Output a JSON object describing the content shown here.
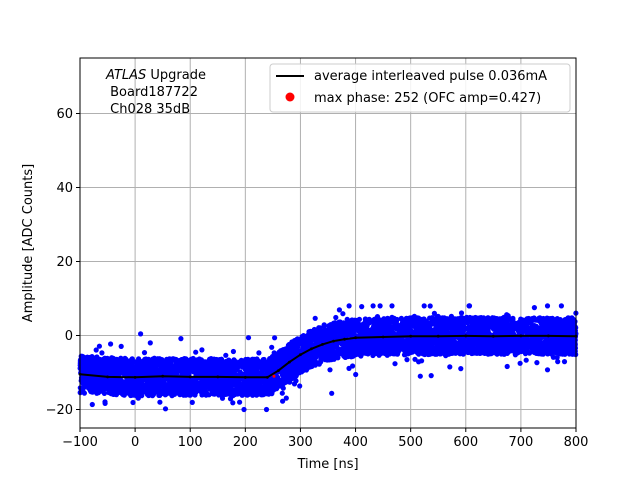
{
  "chart_data": {
    "type": "scatter",
    "title": "",
    "xlabel": "Time [ns]",
    "ylabel": "Amplitude [ADC Counts]",
    "xlim": [
      -100,
      800
    ],
    "ylim": [
      -25,
      75
    ],
    "xticks": [
      -100,
      0,
      100,
      200,
      300,
      400,
      500,
      600,
      700,
      800
    ],
    "yticks": [
      -20,
      0,
      20,
      40,
      60
    ],
    "xtick_labels": [
      "−100",
      "0",
      "100",
      "200",
      "300",
      "400",
      "500",
      "600",
      "700",
      "800"
    ],
    "ytick_labels": [
      "−20",
      "0",
      "20",
      "40",
      "60"
    ],
    "grid": true,
    "legend_position": "top-right",
    "annotation": {
      "line1_italic": "ATLAS",
      "line1_rest": " Upgrade",
      "line2": " Board187722",
      "line3": " Ch028 35dB"
    },
    "series": [
      {
        "name": "average interleaved pulse 0.036mA",
        "kind": "line",
        "color": "#000000",
        "points": [
          [
            -100,
            -10.5
          ],
          [
            -50,
            -11.2
          ],
          [
            0,
            -11.3
          ],
          [
            50,
            -11.0
          ],
          [
            100,
            -11.2
          ],
          [
            150,
            -11.2
          ],
          [
            200,
            -11.3
          ],
          [
            240,
            -11.3
          ],
          [
            260,
            -9.5
          ],
          [
            280,
            -7.2
          ],
          [
            300,
            -5.2
          ],
          [
            320,
            -3.6
          ],
          [
            340,
            -2.4
          ],
          [
            360,
            -1.5
          ],
          [
            380,
            -1.0
          ],
          [
            400,
            -0.6
          ],
          [
            450,
            -0.4
          ],
          [
            500,
            -0.2
          ],
          [
            550,
            -0.2
          ],
          [
            600,
            -0.1
          ],
          [
            650,
            -0.2
          ],
          [
            700,
            -0.1
          ],
          [
            750,
            -0.1
          ],
          [
            800,
            -0.2
          ]
        ]
      },
      {
        "name": "max phase: 252 (OFC amp=0.427)",
        "kind": "point",
        "color": "#ff0000",
        "points": [
          [
            252,
            -11.0
          ]
        ]
      },
      {
        "name": "",
        "kind": "scatter",
        "color": "#0000ff",
        "band_center": [
          [
            -100,
            -10.5
          ],
          [
            0,
            -11.3
          ],
          [
            100,
            -11.2
          ],
          [
            200,
            -11.3
          ],
          [
            240,
            -11.3
          ],
          [
            260,
            -9.5
          ],
          [
            280,
            -7.2
          ],
          [
            300,
            -5.2
          ],
          [
            320,
            -3.6
          ],
          [
            340,
            -2.4
          ],
          [
            360,
            -1.5
          ],
          [
            400,
            -0.6
          ],
          [
            500,
            -0.2
          ],
          [
            600,
            -0.1
          ],
          [
            700,
            -0.1
          ],
          [
            800,
            -0.2
          ]
        ],
        "band_halfwidth": 5,
        "outlier_range": [
          -20,
          8
        ]
      }
    ],
    "colors": {
      "scatter": "#0000ff",
      "average_line": "#000000",
      "max_phase_marker": "#ff0000",
      "grid": "#b0b0b0"
    }
  }
}
